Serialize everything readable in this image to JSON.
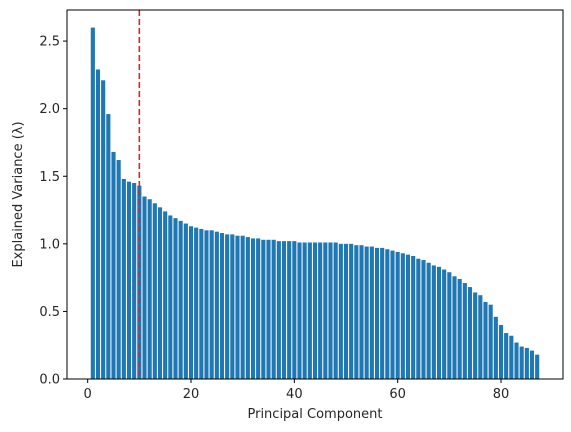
{
  "chart_data": {
    "type": "bar",
    "title": "",
    "xlabel": "Principal Component",
    "ylabel": "Explained Variance (λ)",
    "xlim": [
      -4,
      92
    ],
    "ylim": [
      0,
      2.73
    ],
    "xticks": [
      0,
      20,
      40,
      60,
      80
    ],
    "yticks": [
      0.0,
      0.5,
      1.0,
      1.5,
      2.0,
      2.5
    ],
    "ytick_labels": [
      "0.0",
      "0.5",
      "1.0",
      "1.5",
      "2.0",
      "2.5"
    ],
    "grid": false,
    "legend": "none",
    "bar_color": "#1f77b4",
    "threshold_line": {
      "x": 10,
      "color": "#d62728",
      "style": "dashed"
    },
    "x": [
      1,
      2,
      3,
      4,
      5,
      6,
      7,
      8,
      9,
      10,
      11,
      12,
      13,
      14,
      15,
      16,
      17,
      18,
      19,
      20,
      21,
      22,
      23,
      24,
      25,
      26,
      27,
      28,
      29,
      30,
      31,
      32,
      33,
      34,
      35,
      36,
      37,
      38,
      39,
      40,
      41,
      42,
      43,
      44,
      45,
      46,
      47,
      48,
      49,
      50,
      51,
      52,
      53,
      54,
      55,
      56,
      57,
      58,
      59,
      60,
      61,
      62,
      63,
      64,
      65,
      66,
      67,
      68,
      69,
      70,
      71,
      72,
      73,
      74,
      75,
      76,
      77,
      78,
      79,
      80,
      81,
      82,
      83,
      84,
      85,
      86,
      87
    ],
    "values": [
      2.6,
      2.29,
      2.21,
      1.96,
      1.68,
      1.62,
      1.48,
      1.46,
      1.45,
      1.43,
      1.35,
      1.33,
      1.3,
      1.27,
      1.24,
      1.21,
      1.19,
      1.17,
      1.15,
      1.13,
      1.12,
      1.11,
      1.1,
      1.1,
      1.09,
      1.08,
      1.07,
      1.07,
      1.06,
      1.06,
      1.05,
      1.04,
      1.04,
      1.03,
      1.03,
      1.03,
      1.02,
      1.02,
      1.02,
      1.02,
      1.01,
      1.01,
      1.01,
      1.01,
      1.01,
      1.01,
      1.01,
      1.01,
      1.0,
      1.0,
      1.0,
      0.99,
      0.99,
      0.98,
      0.98,
      0.97,
      0.97,
      0.96,
      0.95,
      0.94,
      0.93,
      0.92,
      0.91,
      0.89,
      0.88,
      0.86,
      0.84,
      0.83,
      0.81,
      0.79,
      0.76,
      0.74,
      0.71,
      0.68,
      0.64,
      0.62,
      0.57,
      0.55,
      0.46,
      0.4,
      0.34,
      0.32,
      0.27,
      0.24,
      0.23,
      0.21,
      0.18
    ]
  }
}
